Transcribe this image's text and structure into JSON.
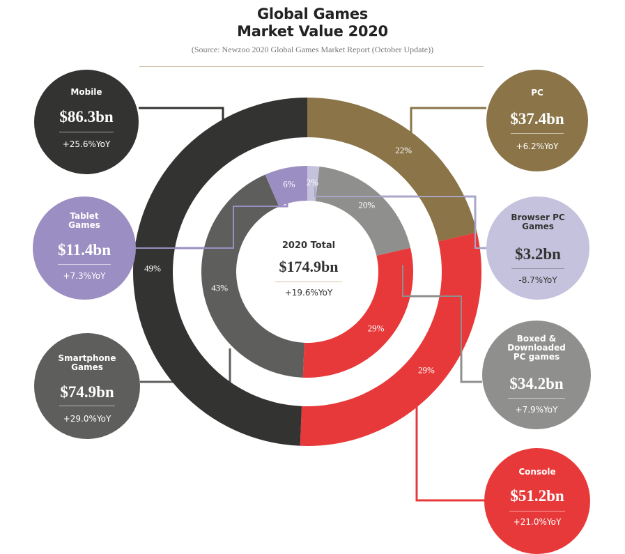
{
  "header": {
    "title_line1": "Global Games",
    "title_line2": "Market Value 2020",
    "source": "(Source: Newzoo 2020 Global Games Market Report (October Update))"
  },
  "center": {
    "label": "2020 Total",
    "value": "$174.9bn",
    "yoy": "+19.6%YoY"
  },
  "segments": {
    "mobile": {
      "name": "Mobile",
      "value": "$86.3bn",
      "yoy": "+25.6%YoY",
      "color": "#333332"
    },
    "tablet": {
      "name": "Tablet Games",
      "value": "$11.4bn",
      "yoy": "+7.3%YoY",
      "color": "#9b8ec2"
    },
    "smartphone": {
      "name": "Smartphone Games",
      "value": "$74.9bn",
      "yoy": "+29.0%YoY",
      "color": "#5e5e5c"
    },
    "pc": {
      "name": "PC",
      "value": "$37.4bn",
      "yoy": "+6.2%YoY",
      "color": "#8a7448"
    },
    "browser": {
      "name": "Browser PC Games",
      "value": "$3.2bn",
      "yoy": "-8.7%YoY",
      "color": "#c5c2dd"
    },
    "boxed": {
      "name": "Boxed & Downloaded PC games",
      "value": "$34.2bn",
      "yoy": "+7.9%YoY",
      "color": "#8f8f8d"
    },
    "console": {
      "name": "Console",
      "value": "$51.2bn",
      "yoy": "+21.0%YoY",
      "color": "#e8393a"
    }
  },
  "chart_data": {
    "type": "pie",
    "title": "Global Games Market Value 2020",
    "unit": "$bn",
    "total": 174.9,
    "outer_ring": [
      {
        "name": "Mobile",
        "value": 86.3,
        "share_label": "49%"
      },
      {
        "name": "Console",
        "value": 51.2,
        "share_label": "29%"
      },
      {
        "name": "PC",
        "value": 37.4,
        "share_label": "22%"
      }
    ],
    "inner_ring": [
      {
        "name": "Smartphone Games",
        "value": 74.9,
        "share_label": "43%"
      },
      {
        "name": "Tablet Games",
        "value": 11.4,
        "share_label": "6%"
      },
      {
        "name": "Browser PC Games",
        "value": 3.2,
        "share_label": "2%"
      },
      {
        "name": "Boxed & Downloaded PC games",
        "value": 34.2,
        "share_label": "20%"
      },
      {
        "name": "Console",
        "value": 51.2,
        "share_label": "29%"
      }
    ]
  }
}
